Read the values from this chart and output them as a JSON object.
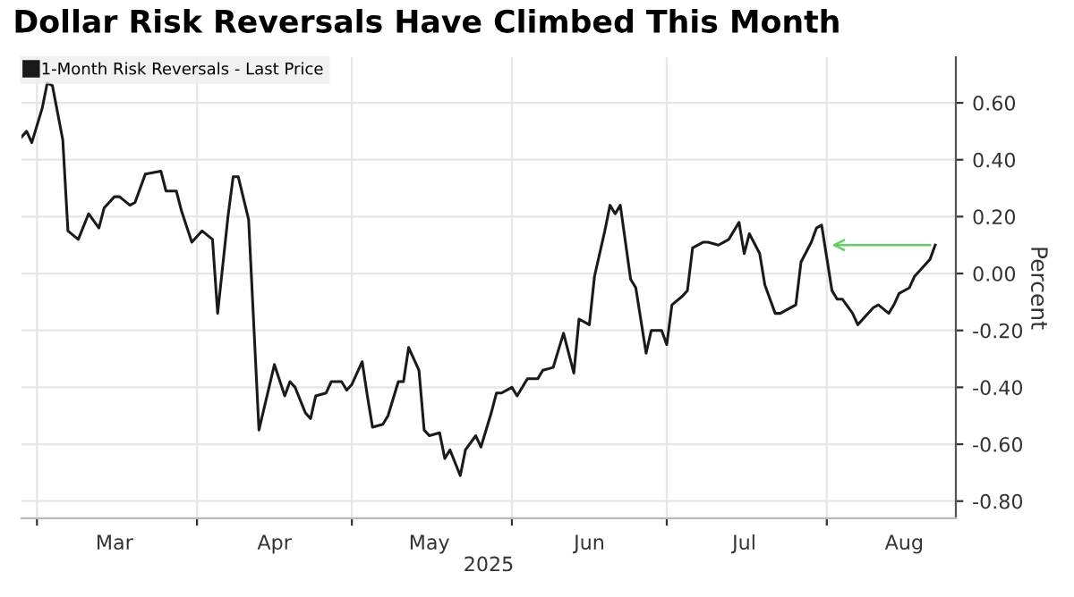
{
  "chart_data": {
    "type": "line",
    "title": "Dollar Risk Reversals Have Climbed This Month",
    "xlabel": "2025",
    "ylabel": "Percent",
    "x": [
      "2025-02-26",
      "2025-02-27",
      "2025-02-28",
      "2025-03-02",
      "2025-03-03",
      "2025-03-04",
      "2025-03-06",
      "2025-03-07",
      "2025-03-09",
      "2025-03-11",
      "2025-03-13",
      "2025-03-14",
      "2025-03-16",
      "2025-03-17",
      "2025-03-19",
      "2025-03-20",
      "2025-03-22",
      "2025-03-25",
      "2025-03-26",
      "2025-03-28",
      "2025-03-29",
      "2025-03-31",
      "2025-04-02",
      "2025-04-04",
      "2025-04-05",
      "2025-04-07",
      "2025-04-08",
      "2025-04-09",
      "2025-04-11",
      "2025-04-13",
      "2025-04-16",
      "2025-04-18",
      "2025-04-19",
      "2025-04-20",
      "2025-04-22",
      "2025-04-23",
      "2025-04-24",
      "2025-04-26",
      "2025-04-27",
      "2025-04-29",
      "2025-04-30",
      "2025-05-01",
      "2025-05-03",
      "2025-05-04",
      "2025-05-05",
      "2025-05-07",
      "2025-05-08",
      "2025-05-10",
      "2025-05-11",
      "2025-05-12",
      "2025-05-14",
      "2025-05-15",
      "2025-05-16",
      "2025-05-18",
      "2025-05-19",
      "2025-05-20",
      "2025-05-22",
      "2025-05-23",
      "2025-05-25",
      "2025-05-26",
      "2025-05-28",
      "2025-05-29",
      "2025-05-30",
      "2025-06-01",
      "2025-06-02",
      "2025-06-04",
      "2025-06-06",
      "2025-06-07",
      "2025-06-09",
      "2025-06-11",
      "2025-06-13",
      "2025-06-14",
      "2025-06-16",
      "2025-06-17",
      "2025-06-19",
      "2025-06-20",
      "2025-06-21",
      "2025-06-22",
      "2025-06-24",
      "2025-06-25",
      "2025-06-27",
      "2025-06-28",
      "2025-06-30",
      "2025-07-01",
      "2025-07-02",
      "2025-07-04",
      "2025-07-05",
      "2025-07-06",
      "2025-07-08",
      "2025-07-09",
      "2025-07-11",
      "2025-07-12",
      "2025-07-13",
      "2025-07-15",
      "2025-07-16",
      "2025-07-17",
      "2025-07-19",
      "2025-07-20",
      "2025-07-22",
      "2025-07-23",
      "2025-07-24",
      "2025-07-26",
      "2025-07-27",
      "2025-07-29",
      "2025-07-30",
      "2025-07-31",
      "2025-08-02",
      "2025-08-03",
      "2025-08-04",
      "2025-08-06",
      "2025-08-07",
      "2025-08-08",
      "2025-08-10",
      "2025-08-11",
      "2025-08-13",
      "2025-08-14",
      "2025-08-15",
      "2025-08-17",
      "2025-08-18",
      "2025-08-20",
      "2025-08-21",
      "2025-08-22"
    ],
    "series": [
      {
        "name": "1-Month Risk Reversals - Last Price",
        "color": "#1a1a1a",
        "values": [
          0.48,
          0.5,
          0.46,
          0.58,
          0.67,
          0.66,
          0.47,
          0.15,
          0.12,
          0.21,
          0.16,
          0.23,
          0.27,
          0.27,
          0.24,
          0.25,
          0.35,
          0.36,
          0.29,
          0.29,
          0.22,
          0.11,
          0.15,
          0.12,
          -0.14,
          0.2,
          0.34,
          0.34,
          0.19,
          -0.55,
          -0.32,
          -0.43,
          -0.38,
          -0.4,
          -0.49,
          -0.51,
          -0.43,
          -0.42,
          -0.38,
          -0.38,
          -0.41,
          -0.39,
          -0.31,
          -0.43,
          -0.54,
          -0.53,
          -0.5,
          -0.38,
          -0.38,
          -0.26,
          -0.34,
          -0.55,
          -0.57,
          -0.56,
          -0.65,
          -0.62,
          -0.71,
          -0.62,
          -0.57,
          -0.61,
          -0.49,
          -0.42,
          -0.42,
          -0.4,
          -0.43,
          -0.37,
          -0.37,
          -0.34,
          -0.33,
          -0.21,
          -0.35,
          -0.16,
          -0.18,
          -0.01,
          0.15,
          0.24,
          0.21,
          0.24,
          -0.02,
          -0.05,
          -0.28,
          -0.2,
          -0.2,
          -0.25,
          -0.11,
          -0.08,
          -0.06,
          0.09,
          0.11,
          0.11,
          0.1,
          0.11,
          0.12,
          0.18,
          0.07,
          0.14,
          0.07,
          -0.04,
          -0.14,
          -0.14,
          -0.13,
          -0.11,
          0.04,
          0.11,
          0.16,
          0.17,
          -0.06,
          -0.09,
          -0.09,
          -0.14,
          -0.18,
          -0.16,
          -0.12,
          -0.11,
          -0.14,
          -0.11,
          -0.07,
          -0.05,
          -0.01,
          0.03,
          0.05,
          0.1
        ]
      }
    ],
    "xlim": [
      "2025-02-26",
      "2025-08-26"
    ],
    "xticks": [
      {
        "value": "2025-03-01",
        "label": null
      },
      {
        "value": "2025-03-16",
        "label": "Mar"
      },
      {
        "value": "2025-04-01",
        "label": null
      },
      {
        "value": "2025-04-16",
        "label": "Apr"
      },
      {
        "value": "2025-05-01",
        "label": null
      },
      {
        "value": "2025-05-16",
        "label": "May"
      },
      {
        "value": "2025-06-01",
        "label": null
      },
      {
        "value": "2025-06-16",
        "label": "Jun"
      },
      {
        "value": "2025-07-01",
        "label": null
      },
      {
        "value": "2025-07-16",
        "label": "Jul"
      },
      {
        "value": "2025-08-01",
        "label": null
      },
      {
        "value": "2025-08-16",
        "label": "Aug"
      }
    ],
    "ylim": [
      -0.86,
      0.76
    ],
    "yticks": [
      {
        "value": -0.8,
        "label": "-0.80"
      },
      {
        "value": -0.6,
        "label": "-0.60"
      },
      {
        "value": -0.4,
        "label": "-0.40"
      },
      {
        "value": -0.2,
        "label": "-0.20"
      },
      {
        "value": 0,
        "label": "0.00"
      },
      {
        "value": 0.2,
        "label": "0.20"
      },
      {
        "value": 0.4,
        "label": "0.40"
      },
      {
        "value": 0.6,
        "label": "0.60"
      }
    ],
    "grid": true,
    "legend": "top left",
    "marker": "none",
    "line_style": "solid"
  }
}
